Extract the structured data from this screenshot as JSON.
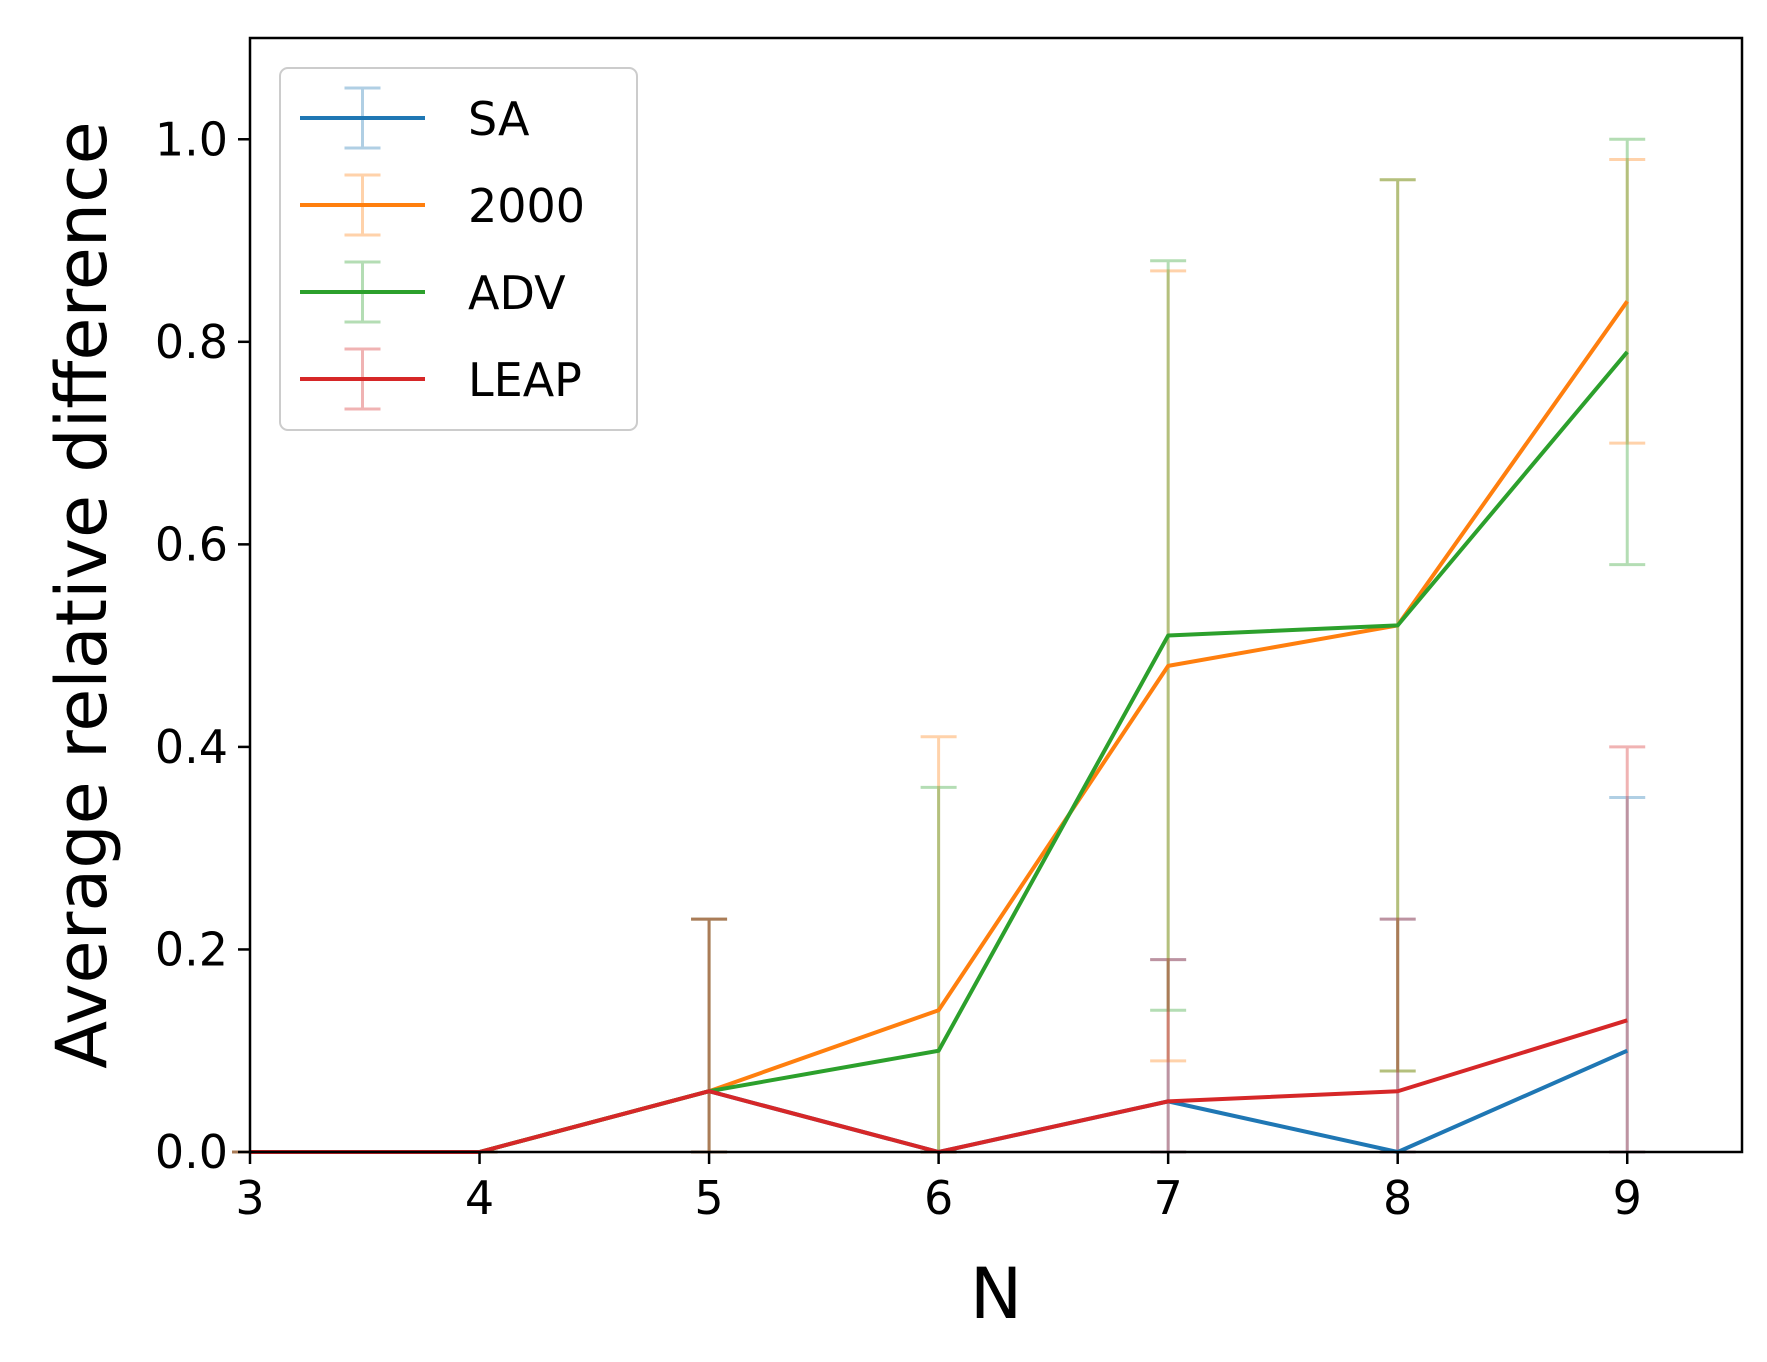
{
  "chart_data": {
    "type": "line",
    "title": "",
    "xlabel": "N",
    "ylabel": "Average relative difference",
    "x": [
      3,
      4,
      5,
      6,
      7,
      8,
      9
    ],
    "xlim": [
      3,
      9.5
    ],
    "ylim": [
      0,
      1.1
    ],
    "xticks": [
      "3",
      "4",
      "5",
      "6",
      "7",
      "8",
      "9"
    ],
    "yticks": [
      "0.0",
      "0.2",
      "0.4",
      "0.6",
      "0.8",
      "1.0"
    ],
    "grid": false,
    "legend_position": "top-left",
    "series": [
      {
        "name": "SA",
        "color": "#1f77b4",
        "values": [
          0,
          0,
          0.06,
          0,
          0.05,
          0,
          0.1
        ],
        "err_low": [
          0,
          0,
          0,
          0,
          0,
          0,
          0
        ],
        "err_high": [
          0,
          0,
          0.23,
          0,
          0.19,
          0.23,
          0.35
        ]
      },
      {
        "name": "2000",
        "color": "#ff7f0e",
        "values": [
          0,
          0,
          0.06,
          0.14,
          0.48,
          0.52,
          0.84
        ],
        "err_low": [
          0,
          0,
          0,
          0,
          0.09,
          0.08,
          0.7
        ],
        "err_high": [
          0,
          0,
          0.23,
          0.41,
          0.87,
          0.96,
          0.98
        ]
      },
      {
        "name": "ADV",
        "color": "#2ca02c",
        "values": [
          0,
          0,
          0.06,
          0.1,
          0.51,
          0.52,
          0.79
        ],
        "err_low": [
          0,
          0,
          0,
          0,
          0.14,
          0.08,
          0.58
        ],
        "err_high": [
          0,
          0,
          0.23,
          0.36,
          0.88,
          0.96,
          1.0
        ]
      },
      {
        "name": "LEAP",
        "color": "#d62728",
        "values": [
          0,
          0,
          0.06,
          0,
          0.05,
          0.06,
          0.13
        ],
        "err_low": [
          0,
          0,
          0,
          0,
          0,
          0,
          0
        ],
        "err_high": [
          0,
          0,
          0.23,
          0,
          0.19,
          0.23,
          0.4
        ]
      }
    ]
  }
}
